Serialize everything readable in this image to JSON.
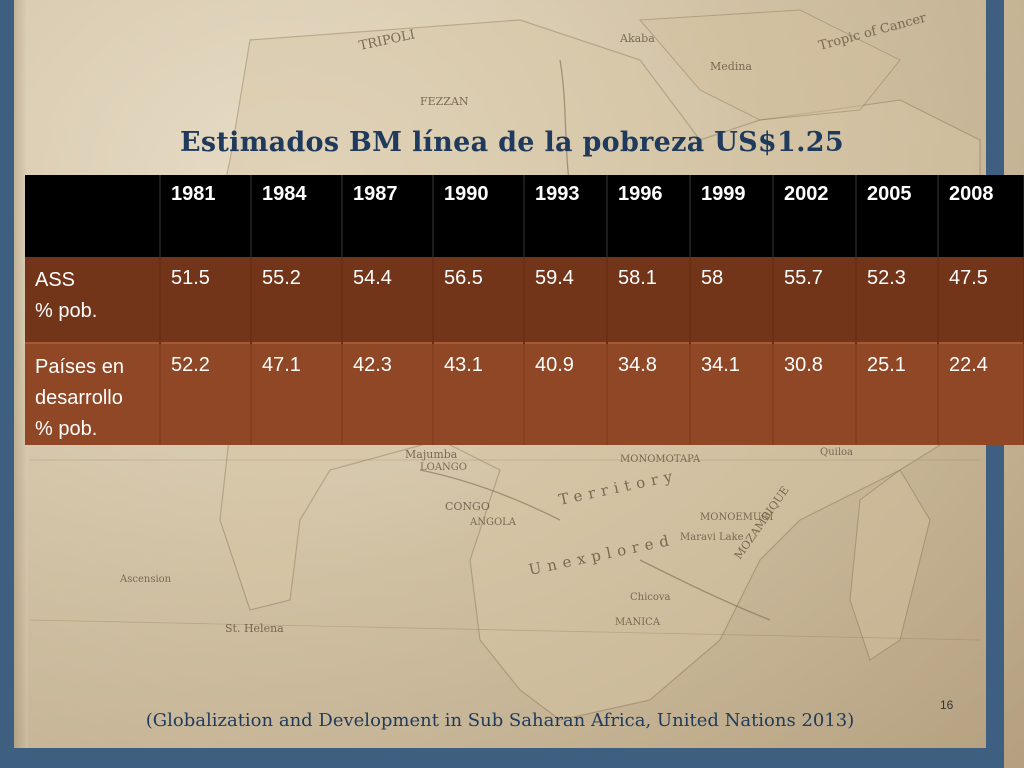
{
  "slide": {
    "title": "Estimados BM línea de la pobreza US$1.25",
    "page_number": "16",
    "citation": "(Globalization and Development in Sub Saharan Africa, United Nations 2013)"
  },
  "table": {
    "corner": "",
    "years": [
      "1981",
      "1984",
      "1987",
      "1990",
      "1993",
      "1996",
      "1999",
      "2002",
      "2005",
      "2008"
    ],
    "rows": [
      {
        "label_lines": [
          "ASS",
          "% pob."
        ],
        "values": [
          "51.5",
          "55.2",
          "54.4",
          "56.5",
          "59.4",
          "58.1",
          "58",
          "55.7",
          "52.3",
          "47.5"
        ]
      },
      {
        "label_lines": [
          "Países en",
          "desarrollo",
          "% pob."
        ],
        "values": [
          "52.2",
          "47.1",
          "42.3",
          "43.1",
          "40.9",
          "34.8",
          "34.1",
          "30.8",
          "25.1",
          "22.4"
        ]
      }
    ]
  },
  "map_labels": [
    "TRIPOLI",
    "FEZZAN",
    "Tropic of Cancer",
    "Medina",
    "Akaba",
    "Majumba",
    "LOANGO",
    "CONGO",
    "ANGOLA",
    "Territory",
    "Unexplored",
    "MOZAMBIQUE",
    "MONOMOTAPA",
    "Chicova",
    "MANICA",
    "St. Helena",
    "Ascension",
    "MONOEMUGI",
    "Quiloa",
    "Maravi Lake"
  ],
  "colors": {
    "frame": "#3e5f80",
    "title": "#1f3a5c",
    "header_bg": "#000000",
    "row1_bg": "#733519",
    "row2_bg": "#8f4725"
  }
}
